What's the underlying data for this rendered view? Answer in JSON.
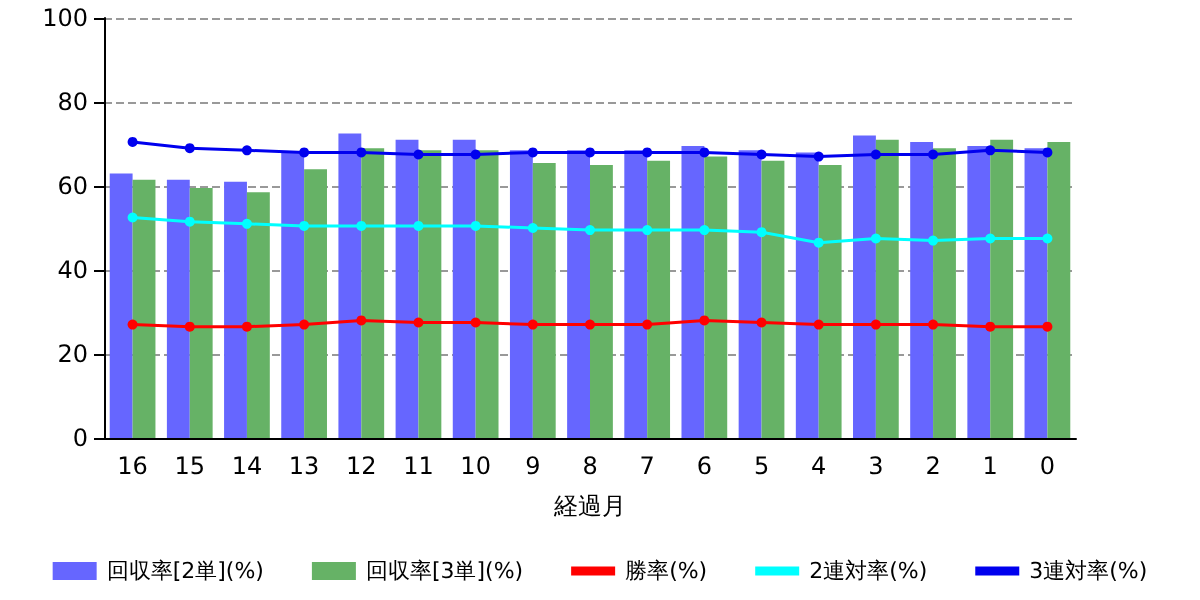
{
  "chart_data": {
    "type": "bar",
    "xlabel": "経過月",
    "categories": [
      "16",
      "15",
      "14",
      "13",
      "12",
      "11",
      "10",
      "9",
      "8",
      "7",
      "6",
      "5",
      "4",
      "3",
      "2",
      "1",
      "0"
    ],
    "series": [
      {
        "name": "回収率[2単](%)",
        "color": "#6666ff",
        "values": [
          63,
          61.5,
          61,
          68,
          72.5,
          71,
          71,
          68.5,
          68.5,
          68.5,
          69.5,
          68.5,
          68,
          72,
          70.5,
          69.5,
          69
        ]
      },
      {
        "name": "回収率[3単](%)",
        "color": "#66b266",
        "values": [
          61.5,
          59.5,
          58.5,
          64,
          69,
          68.5,
          68.5,
          65.5,
          65,
          66,
          67,
          66,
          65,
          71,
          69,
          71,
          70.5
        ]
      },
      {
        "name": "勝率(%)",
        "type": "line",
        "color": "#ff0000",
        "marker": "circle",
        "values": [
          27,
          26.5,
          26.5,
          27,
          28,
          27.5,
          27.5,
          27,
          27,
          27,
          28,
          27.5,
          27,
          27,
          27,
          26.5,
          26.5
        ]
      },
      {
        "name": "2連対率(%)",
        "type": "line",
        "color": "#00ffff",
        "marker": "circle",
        "values": [
          52.5,
          51.5,
          51,
          50.5,
          50.5,
          50.5,
          50.5,
          50,
          49.5,
          49.5,
          49.5,
          49,
          46.5,
          47.5,
          47,
          47.5,
          47.5
        ]
      },
      {
        "name": "3連対率(%)",
        "type": "line",
        "color": "#0000ee",
        "marker": "circle",
        "values": [
          70.5,
          69,
          68.5,
          68,
          68,
          67.5,
          67.5,
          68,
          68,
          68,
          68,
          67.5,
          67,
          67.5,
          67.5,
          68.5,
          68
        ]
      }
    ],
    "ylim": [
      0,
      100
    ],
    "yticks": [
      0,
      20,
      40,
      60,
      80,
      100
    ],
    "grid": "y",
    "legend": "bottom"
  }
}
